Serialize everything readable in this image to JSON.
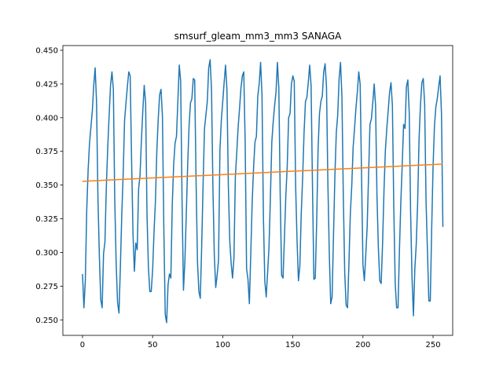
{
  "chart_data": {
    "type": "line",
    "title": "smsurf_gleam_mm3_mm3 SANAGA",
    "xlabel": "",
    "ylabel": "",
    "xlim": [
      -14,
      264
    ],
    "ylim": [
      0.2385,
      0.4535
    ],
    "xticks": [
      0,
      50,
      100,
      150,
      200,
      250
    ],
    "yticks": [
      0.25,
      0.275,
      0.3,
      0.325,
      0.35,
      0.375,
      0.4,
      0.425,
      0.45
    ],
    "ytick_labels": [
      "0.250",
      "0.275",
      "0.300",
      "0.325",
      "0.350",
      "0.375",
      "0.400",
      "0.425",
      "0.450"
    ],
    "grid": false,
    "legend": "none",
    "colors": {
      "series_0": "#1f77b4",
      "series_1": "#ff7f0e"
    },
    "series": [
      {
        "values": [
          0.284,
          0.259,
          0.279,
          0.331,
          0.361,
          0.381,
          0.393,
          0.405,
          0.424,
          0.437,
          0.412,
          0.341,
          0.298,
          0.265,
          0.259,
          0.299,
          0.308,
          0.349,
          0.378,
          0.402,
          0.424,
          0.434,
          0.421,
          0.339,
          0.292,
          0.263,
          0.255,
          0.289,
          0.328,
          0.358,
          0.398,
          0.411,
          0.423,
          0.434,
          0.431,
          0.369,
          0.314,
          0.286,
          0.307,
          0.302,
          0.347,
          0.357,
          0.383,
          0.405,
          0.424,
          0.411,
          0.328,
          0.289,
          0.271,
          0.271,
          0.287,
          0.315,
          0.338,
          0.375,
          0.399,
          0.417,
          0.421,
          0.401,
          0.318,
          0.254,
          0.248,
          0.276,
          0.284,
          0.281,
          0.335,
          0.365,
          0.381,
          0.386,
          0.412,
          0.439,
          0.427,
          0.338,
          0.272,
          0.293,
          0.328,
          0.365,
          0.394,
          0.411,
          0.414,
          0.429,
          0.428,
          0.352,
          0.293,
          0.271,
          0.266,
          0.305,
          0.351,
          0.392,
          0.402,
          0.412,
          0.437,
          0.443,
          0.421,
          0.348,
          0.298,
          0.274,
          0.283,
          0.294,
          0.376,
          0.398,
          0.412,
          0.426,
          0.439,
          0.421,
          0.35,
          0.309,
          0.292,
          0.281,
          0.296,
          0.356,
          0.374,
          0.393,
          0.407,
          0.422,
          0.431,
          0.434,
          0.382,
          0.288,
          0.28,
          0.262,
          0.299,
          0.337,
          0.363,
          0.382,
          0.386,
          0.416,
          0.425,
          0.441,
          0.417,
          0.327,
          0.279,
          0.267,
          0.285,
          0.304,
          0.341,
          0.382,
          0.397,
          0.409,
          0.419,
          0.441,
          0.422,
          0.342,
          0.283,
          0.281,
          0.311,
          0.342,
          0.364,
          0.4,
          0.403,
          0.425,
          0.431,
          0.427,
          0.349,
          0.309,
          0.279,
          0.29,
          0.329,
          0.356,
          0.389,
          0.412,
          0.415,
          0.426,
          0.439,
          0.424,
          0.35,
          0.28,
          0.281,
          0.323,
          0.377,
          0.403,
          0.412,
          0.416,
          0.434,
          0.44,
          0.423,
          0.351,
          0.299,
          0.262,
          0.267,
          0.313,
          0.357,
          0.389,
          0.402,
          0.429,
          0.441,
          0.416,
          0.341,
          0.285,
          0.261,
          0.259,
          0.292,
          0.329,
          0.349,
          0.378,
          0.392,
          0.407,
          0.419,
          0.434,
          0.425,
          0.357,
          0.291,
          0.279,
          0.298,
          0.319,
          0.357,
          0.395,
          0.399,
          0.411,
          0.425,
          0.409,
          0.342,
          0.303,
          0.279,
          0.277,
          0.307,
          0.346,
          0.376,
          0.392,
          0.405,
          0.419,
          0.426,
          0.409,
          0.333,
          0.277,
          0.259,
          0.259,
          0.301,
          0.337,
          0.365,
          0.395,
          0.392,
          0.423,
          0.428,
          0.404,
          0.329,
          0.281,
          0.253,
          0.288,
          0.306,
          0.337,
          0.384,
          0.409,
          0.426,
          0.429,
          0.41,
          0.338,
          0.301,
          0.264,
          0.264,
          0.317,
          0.364,
          0.394,
          0.408,
          0.414,
          0.423,
          0.431,
          0.403,
          0.319
        ]
      },
      {
        "values_at_ends": [
          0.3528,
          0.3656
        ]
      }
    ]
  }
}
